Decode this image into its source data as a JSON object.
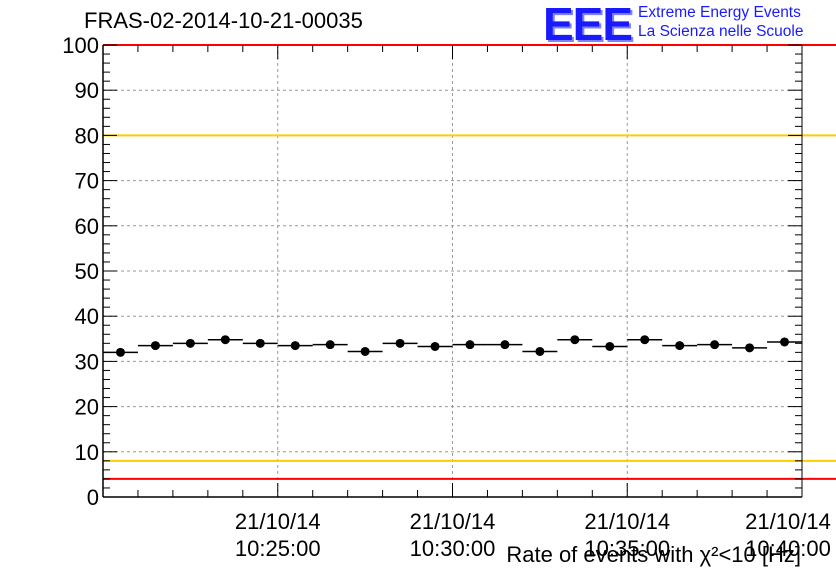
{
  "title": "FRAS-02-2014-10-21-00035",
  "logo": {
    "mark": "EEE",
    "line1": "Extreme Energy Events",
    "line2": "La Scienza nelle Scuole"
  },
  "colors": {
    "threshold_outer": "#ff0000",
    "threshold_inner": "#ffcc00",
    "points": "#000000",
    "grid": "#999999",
    "logo": "#1a1aff"
  },
  "chart_data": {
    "type": "scatter",
    "title": "FRAS-02-2014-10-21-00035",
    "xlabel": "Rate of events with χ²<10 [Hz]",
    "ylabel": "",
    "x_unit": "minutes after 10:20:00 on 21/10/14",
    "xlim": [
      "2014-10-21T10:20:00",
      "2014-10-21T10:40:00"
    ],
    "ylim": [
      0,
      100
    ],
    "y_ticks": [
      0,
      10,
      20,
      30,
      40,
      50,
      60,
      70,
      80,
      90,
      100
    ],
    "x_ticks": [
      {
        "time": "2014-10-21T10:25:00",
        "date": "21/10/14",
        "clock": "10:25:00"
      },
      {
        "time": "2014-10-21T10:30:00",
        "date": "21/10/14",
        "clock": "10:30:00"
      },
      {
        "time": "2014-10-21T10:35:00",
        "date": "21/10/14",
        "clock": "10:35:00"
      },
      {
        "time": "2014-10-21T10:40:00",
        "date": "21/10/14",
        "clock": "10:40:00"
      }
    ],
    "grid": true,
    "series": [
      {
        "name": "",
        "x": [
          "2014-10-21T10:20:30",
          "2014-10-21T10:21:30",
          "2014-10-21T10:22:30",
          "2014-10-21T10:23:30",
          "2014-10-21T10:24:30",
          "2014-10-21T10:25:30",
          "2014-10-21T10:26:30",
          "2014-10-21T10:27:30",
          "2014-10-21T10:28:30",
          "2014-10-21T10:29:30",
          "2014-10-21T10:30:30",
          "2014-10-21T10:31:30",
          "2014-10-21T10:32:30",
          "2014-10-21T10:33:30",
          "2014-10-21T10:34:30",
          "2014-10-21T10:35:30",
          "2014-10-21T10:36:30",
          "2014-10-21T10:37:30",
          "2014-10-21T10:38:30",
          "2014-10-21T10:39:30"
        ],
        "y": [
          32.0,
          33.5,
          34.0,
          34.8,
          34.0,
          33.5,
          33.7,
          32.2,
          34.0,
          33.3,
          33.7,
          33.7,
          32.2,
          34.8,
          33.3,
          34.8,
          33.5,
          33.7,
          33.0,
          34.3
        ],
        "bin_width_minutes": 1
      }
    ],
    "reference_lines": [
      {
        "y": 100,
        "color": "#ff0000"
      },
      {
        "y": 80,
        "color": "#ffcc00"
      },
      {
        "y": 8,
        "color": "#ffcc00"
      },
      {
        "y": 4,
        "color": "#ff0000"
      }
    ]
  }
}
